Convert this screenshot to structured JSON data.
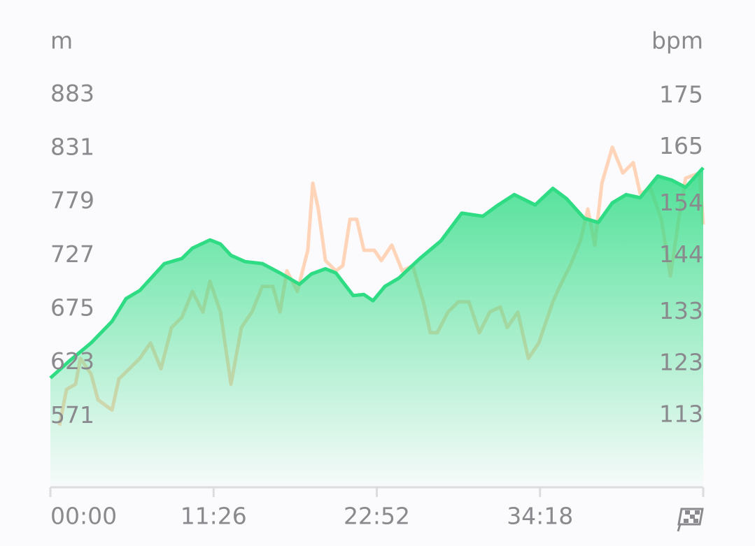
{
  "chart_data": {
    "type": "line",
    "y_label": "m",
    "y2_label": "bpm",
    "xlim": [
      0,
      2744
    ],
    "xticks": [
      {
        "value": 0,
        "label": "00:00"
      },
      {
        "value": 686,
        "label": "11:26"
      },
      {
        "value": 1372,
        "label": "22:52"
      },
      {
        "value": 2058,
        "label": "34:18"
      }
    ],
    "ylim": [
      502,
      907
    ],
    "yticks": [
      883,
      831,
      779,
      727,
      675,
      623,
      571
    ],
    "y2lim": [
      99,
      180
    ],
    "y2ticks": [
      175,
      165,
      154,
      144,
      133,
      123,
      113
    ],
    "series": [
      {
        "color": "#ffcfb0",
        "axis": "y2",
        "x": [
          38,
          68,
          106,
          126,
          171,
          200,
          229,
          259,
          288,
          332,
          376,
          421,
          465,
          509,
          553,
          597,
          641,
          671,
          715,
          759,
          803,
          847,
          891,
          935,
          965,
          994,
          1038,
          1082,
          1103,
          1126,
          1156,
          1200,
          1229,
          1259,
          1288,
          1318,
          1362,
          1391,
          1435,
          1479,
          1523,
          1568,
          1597,
          1626,
          1671,
          1715,
          1759,
          1803,
          1847,
          1891,
          1920,
          1965,
          2009,
          2053,
          2112,
          2141,
          2185,
          2229,
          2259,
          2288,
          2318,
          2362,
          2406,
          2450,
          2479,
          2523,
          2568,
          2606,
          2641,
          2670,
          2729,
          2744
        ],
        "values": [
          111,
          118,
          119,
          124,
          121,
          116,
          115,
          114,
          120,
          122,
          124,
          127,
          122,
          130,
          132,
          137,
          133,
          139,
          133,
          119,
          130,
          133,
          138,
          138,
          133,
          141,
          137,
          145,
          158,
          153,
          143,
          141,
          142,
          151,
          151,
          145,
          145,
          143,
          146,
          141,
          142,
          135,
          129,
          129,
          133,
          135,
          135,
          129,
          133,
          134,
          130,
          133,
          124,
          127,
          135,
          138,
          142,
          147,
          153,
          146,
          158,
          165,
          160,
          162,
          156,
          157,
          151,
          140,
          151,
          159,
          160,
          150
        ]
      },
      {
        "color": "#2fdc84",
        "axis": "y",
        "x": [
          0,
          82,
          171,
          259,
          318,
          376,
          479,
          553,
          597,
          671,
          715,
          759,
          818,
          891,
          965,
          1047,
          1097,
          1156,
          1200,
          1273,
          1318,
          1356,
          1406,
          1465,
          1553,
          1641,
          1729,
          1818,
          1876,
          1950,
          2038,
          2112,
          2170,
          2244,
          2303,
          2362,
          2420,
          2479,
          2553,
          2612,
          2670,
          2744
        ],
        "values": [
          608,
          625,
          642,
          663,
          685,
          693,
          719,
          724,
          734,
          742,
          738,
          727,
          721,
          719,
          710,
          699,
          709,
          714,
          710,
          688,
          689,
          683,
          697,
          705,
          724,
          741,
          768,
          765,
          775,
          786,
          776,
          792,
          782,
          763,
          759,
          778,
          786,
          783,
          804,
          800,
          793,
          812
        ]
      }
    ]
  }
}
